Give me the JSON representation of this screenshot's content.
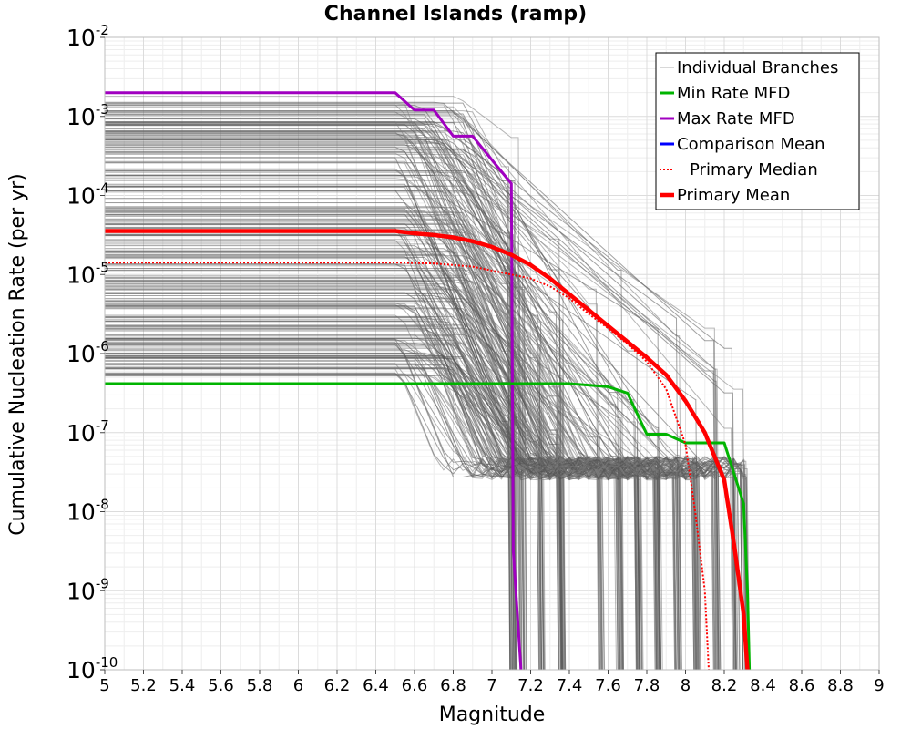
{
  "chart_data": {
    "type": "line",
    "title": "Channel Islands (ramp)",
    "xlabel": "Magnitude",
    "ylabel": "Cumulative Nucleation Rate (per yr)",
    "xlim": [
      5,
      9
    ],
    "ylim_log10": [
      -10,
      -2
    ],
    "y_scale": "log",
    "grid": true,
    "x_ticks": [
      "5",
      "5.2",
      "5.4",
      "5.6",
      "5.8",
      "6",
      "6.2",
      "6.4",
      "6.6",
      "6.8",
      "7",
      "7.2",
      "7.4",
      "7.6",
      "7.8",
      "8",
      "8.2",
      "8.4",
      "8.6",
      "8.8",
      "9"
    ],
    "y_ticks": [
      {
        "base": "10",
        "exp": "-2"
      },
      {
        "base": "10",
        "exp": "-3"
      },
      {
        "base": "10",
        "exp": "-4"
      },
      {
        "base": "10",
        "exp": "-5"
      },
      {
        "base": "10",
        "exp": "-6"
      },
      {
        "base": "10",
        "exp": "-7"
      },
      {
        "base": "10",
        "exp": "-8"
      },
      {
        "base": "10",
        "exp": "-9"
      },
      {
        "base": "10",
        "exp": "-10"
      }
    ],
    "legend_position": "top-right",
    "legend": [
      {
        "name": "Individual Branches",
        "color": "#b0b0b0",
        "style": "solid-thin"
      },
      {
        "name": "Min Rate MFD",
        "color": "#00b400",
        "style": "solid"
      },
      {
        "name": "Max Rate MFD",
        "color": "#a000c0",
        "style": "solid"
      },
      {
        "name": "Comparison Mean",
        "color": "#0000ff",
        "style": "solid"
      },
      {
        "name": "Primary Median",
        "color": "#ff0000",
        "style": "dotted"
      },
      {
        "name": "Primary Mean",
        "color": "#ff0000",
        "style": "solid-thick"
      }
    ],
    "branches": {
      "name": "Individual Branches",
      "count": 260,
      "plateau_log10_range": [
        -6.3,
        -2.7
      ],
      "plateau_end_magnitude": 6.5,
      "cutoff_magnitudes": [
        7.1,
        7.15,
        7.25,
        7.35,
        7.55,
        7.65,
        7.75,
        7.85,
        7.95,
        8.05,
        8.15,
        8.25,
        8.3
      ]
    },
    "series": [
      {
        "name": "Max Rate MFD",
        "color": "#a000c0",
        "x": [
          5.0,
          6.5,
          6.6,
          6.7,
          6.8,
          6.9,
          7.0,
          7.1,
          7.11,
          7.15
        ],
        "log10_y": [
          -2.7,
          -2.7,
          -2.92,
          -2.92,
          -3.25,
          -3.25,
          -3.55,
          -3.85,
          -8.5,
          -10.0
        ]
      },
      {
        "name": "Min Rate MFD",
        "color": "#00b400",
        "x": [
          5.0,
          6.5,
          7.0,
          7.2,
          7.4,
          7.6,
          7.7,
          7.8,
          7.85,
          7.9,
          8.0,
          8.1,
          8.2,
          8.3,
          8.32,
          8.33
        ],
        "log10_y": [
          -6.38,
          -6.38,
          -6.38,
          -6.38,
          -6.38,
          -6.42,
          -6.5,
          -7.02,
          -7.02,
          -7.02,
          -7.13,
          -7.13,
          -7.13,
          -7.9,
          -9.0,
          -10.0
        ]
      },
      {
        "name": "Primary Median",
        "color": "#ff0000",
        "x": [
          5.0,
          6.5,
          6.7,
          6.9,
          7.0,
          7.1,
          7.2,
          7.3,
          7.4,
          7.5,
          7.6,
          7.7,
          7.8,
          7.9,
          8.0,
          8.05,
          8.1,
          8.12
        ],
        "log10_y": [
          -4.85,
          -4.85,
          -4.86,
          -4.9,
          -4.95,
          -5.0,
          -5.05,
          -5.15,
          -5.3,
          -5.5,
          -5.68,
          -5.88,
          -6.1,
          -6.45,
          -7.15,
          -8.0,
          -9.0,
          -10.0
        ]
      },
      {
        "name": "Primary Mean",
        "color": "#ff0000",
        "x": [
          5.0,
          6.5,
          6.6,
          6.7,
          6.8,
          6.9,
          7.0,
          7.1,
          7.2,
          7.3,
          7.4,
          7.5,
          7.6,
          7.7,
          7.8,
          7.9,
          8.0,
          8.1,
          8.2,
          8.25,
          8.3,
          8.32
        ],
        "log10_y": [
          -4.45,
          -4.45,
          -4.48,
          -4.5,
          -4.53,
          -4.58,
          -4.65,
          -4.75,
          -4.88,
          -5.05,
          -5.25,
          -5.45,
          -5.65,
          -5.85,
          -6.05,
          -6.27,
          -6.6,
          -7.0,
          -7.6,
          -8.4,
          -9.3,
          -10.0
        ]
      }
    ]
  }
}
